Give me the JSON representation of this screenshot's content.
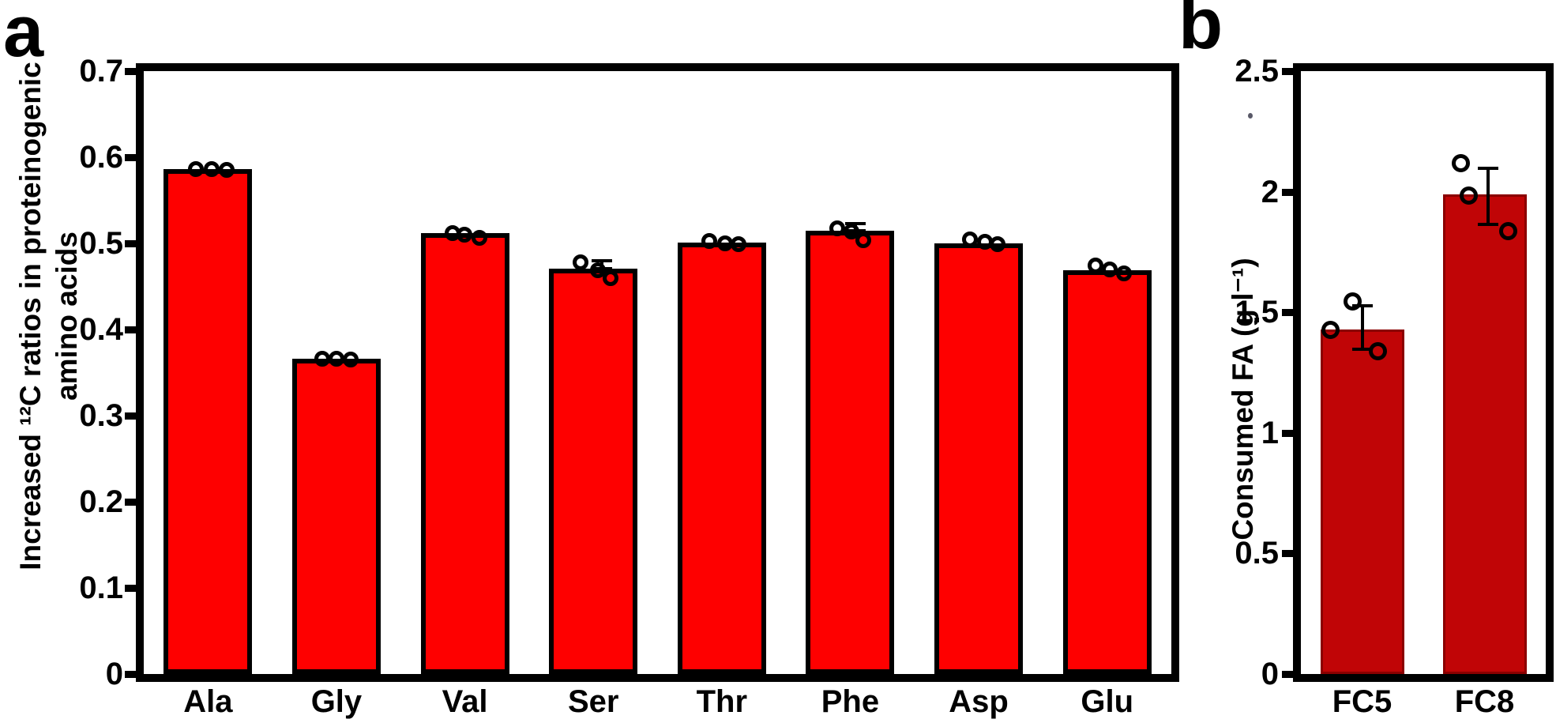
{
  "chart_data": [
    {
      "type": "bar",
      "panel_label": "a",
      "ylabel": "Increased ¹²C ratios in proteinogenic amino acids",
      "ylabel_lines": [
        "Increased ¹²C ratios in proteinogenic",
        "amino acids"
      ],
      "xlabel": "",
      "ylim": [
        0,
        0.7
      ],
      "yticks": [
        0,
        0.1,
        0.2,
        0.3,
        0.4,
        0.5,
        0.6,
        0.7
      ],
      "ytick_labels": [
        "0",
        "0.1",
        "0.2",
        "0.3",
        "0.4",
        "0.5",
        "0.6",
        "0.7"
      ],
      "categories": [
        "Ala",
        "Gly",
        "Val",
        "Ser",
        "Thr",
        "Phe",
        "Asp",
        "Glu"
      ],
      "values": [
        0.586,
        0.366,
        0.512,
        0.471,
        0.501,
        0.515,
        0.5,
        0.469
      ],
      "bar_color": "#fe0000",
      "bar_border_color": "#000000",
      "marker": "open-circle",
      "grid": false,
      "legend": null,
      "points": [
        [
          {
            "dx": -15,
            "v": 0.586
          },
          {
            "dx": 5,
            "v": 0.586
          },
          {
            "dx": 24,
            "v": 0.585
          }
        ],
        [
          {
            "dx": -18,
            "v": 0.366
          },
          {
            "dx": 0,
            "v": 0.366
          },
          {
            "dx": 18,
            "v": 0.365
          }
        ],
        [
          {
            "dx": -16,
            "v": 0.512
          },
          {
            "dx": -1,
            "v": 0.51
          },
          {
            "dx": 18,
            "v": 0.506
          }
        ],
        [
          {
            "dx": -16,
            "v": 0.478
          },
          {
            "dx": 6,
            "v": 0.469
          },
          {
            "dx": 22,
            "v": 0.46
          }
        ],
        [
          {
            "dx": -16,
            "v": 0.503
          },
          {
            "dx": 4,
            "v": 0.5
          },
          {
            "dx": 21,
            "v": 0.499
          }
        ],
        [
          {
            "dx": -16,
            "v": 0.517
          },
          {
            "dx": 2,
            "v": 0.514
          },
          {
            "dx": 17,
            "v": 0.504
          }
        ],
        [
          {
            "dx": -11,
            "v": 0.505
          },
          {
            "dx": 8,
            "v": 0.502
          },
          {
            "dx": 24,
            "v": 0.499
          }
        ],
        [
          {
            "dx": -15,
            "v": 0.474
          },
          {
            "dx": 3,
            "v": 0.47
          },
          {
            "dx": 21,
            "v": 0.465
          }
        ]
      ],
      "error_bars": [
        {
          "ci": 3,
          "dx": 11,
          "low": 0.471,
          "high": 0.48
        },
        {
          "ci": 5,
          "dx": 7,
          "low": 0.515,
          "high": 0.523
        }
      ]
    },
    {
      "type": "bar",
      "panel_label": "b",
      "ylabel": "Consumed FA (g l⁻¹)",
      "ylabel_lines": [
        "Consumed FA (g l⁻¹)"
      ],
      "xlabel": "",
      "ylim": [
        0,
        2.5
      ],
      "yticks": [
        0,
        0.5,
        1,
        1.5,
        2,
        2.5
      ],
      "ytick_labels": [
        "0",
        "0.5",
        "1",
        "1.5",
        "2",
        "2.5"
      ],
      "categories": [
        "FC5",
        "FC8"
      ],
      "values": [
        1.43,
        1.99
      ],
      "bar_color": "#c00506",
      "bar_border_color": "#8b0000",
      "marker": "open-circle",
      "grid": false,
      "legend": null,
      "points": [
        [
          {
            "dx": -12,
            "v": 1.546
          },
          {
            "dx": -40,
            "v": 1.428
          },
          {
            "dx": 20,
            "v": 1.34
          }
        ],
        [
          {
            "dx": -30,
            "v": 2.118
          },
          {
            "dx": -20,
            "v": 1.984
          },
          {
            "dx": 30,
            "v": 1.836
          }
        ]
      ],
      "error_bars": [
        {
          "ci": 0,
          "dx": 0,
          "low": 1.346,
          "high": 1.526
        },
        {
          "ci": 1,
          "dx": 4,
          "low": 1.863,
          "high": 2.098
        }
      ]
    }
  ]
}
